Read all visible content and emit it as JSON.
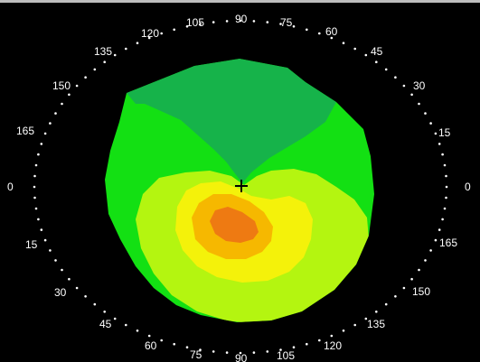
{
  "colors": {
    "background": "#000000",
    "frame_border": "#bdbdbd",
    "tick_dots": "#ffffff",
    "label_text": "#ffffff",
    "zone_dark_green": "#16b34a",
    "zone_green": "#13e013",
    "zone_yellow_green": "#b4f510",
    "zone_yellow": "#f4f20a",
    "zone_orange": "#f6b800",
    "zone_dark_orange": "#ee7a12",
    "center_mark": "#000000"
  },
  "map": {
    "center_mark_symbol": "+",
    "angle_labels_top": [
      "120",
      "105",
      "90",
      "75",
      "60"
    ],
    "angle_labels_upper_right": [
      "45",
      "30",
      "15"
    ],
    "angle_label_right": "0",
    "angle_labels_lower_right": [
      "165",
      "150",
      "135"
    ],
    "angle_labels_bottom": [
      "120",
      "105",
      "90",
      "75",
      "60"
    ],
    "angle_labels_lower_left": [
      "45",
      "30",
      "15"
    ],
    "angle_label_left": "0",
    "angle_labels_upper_left": [
      "165",
      "150",
      "135"
    ]
  }
}
